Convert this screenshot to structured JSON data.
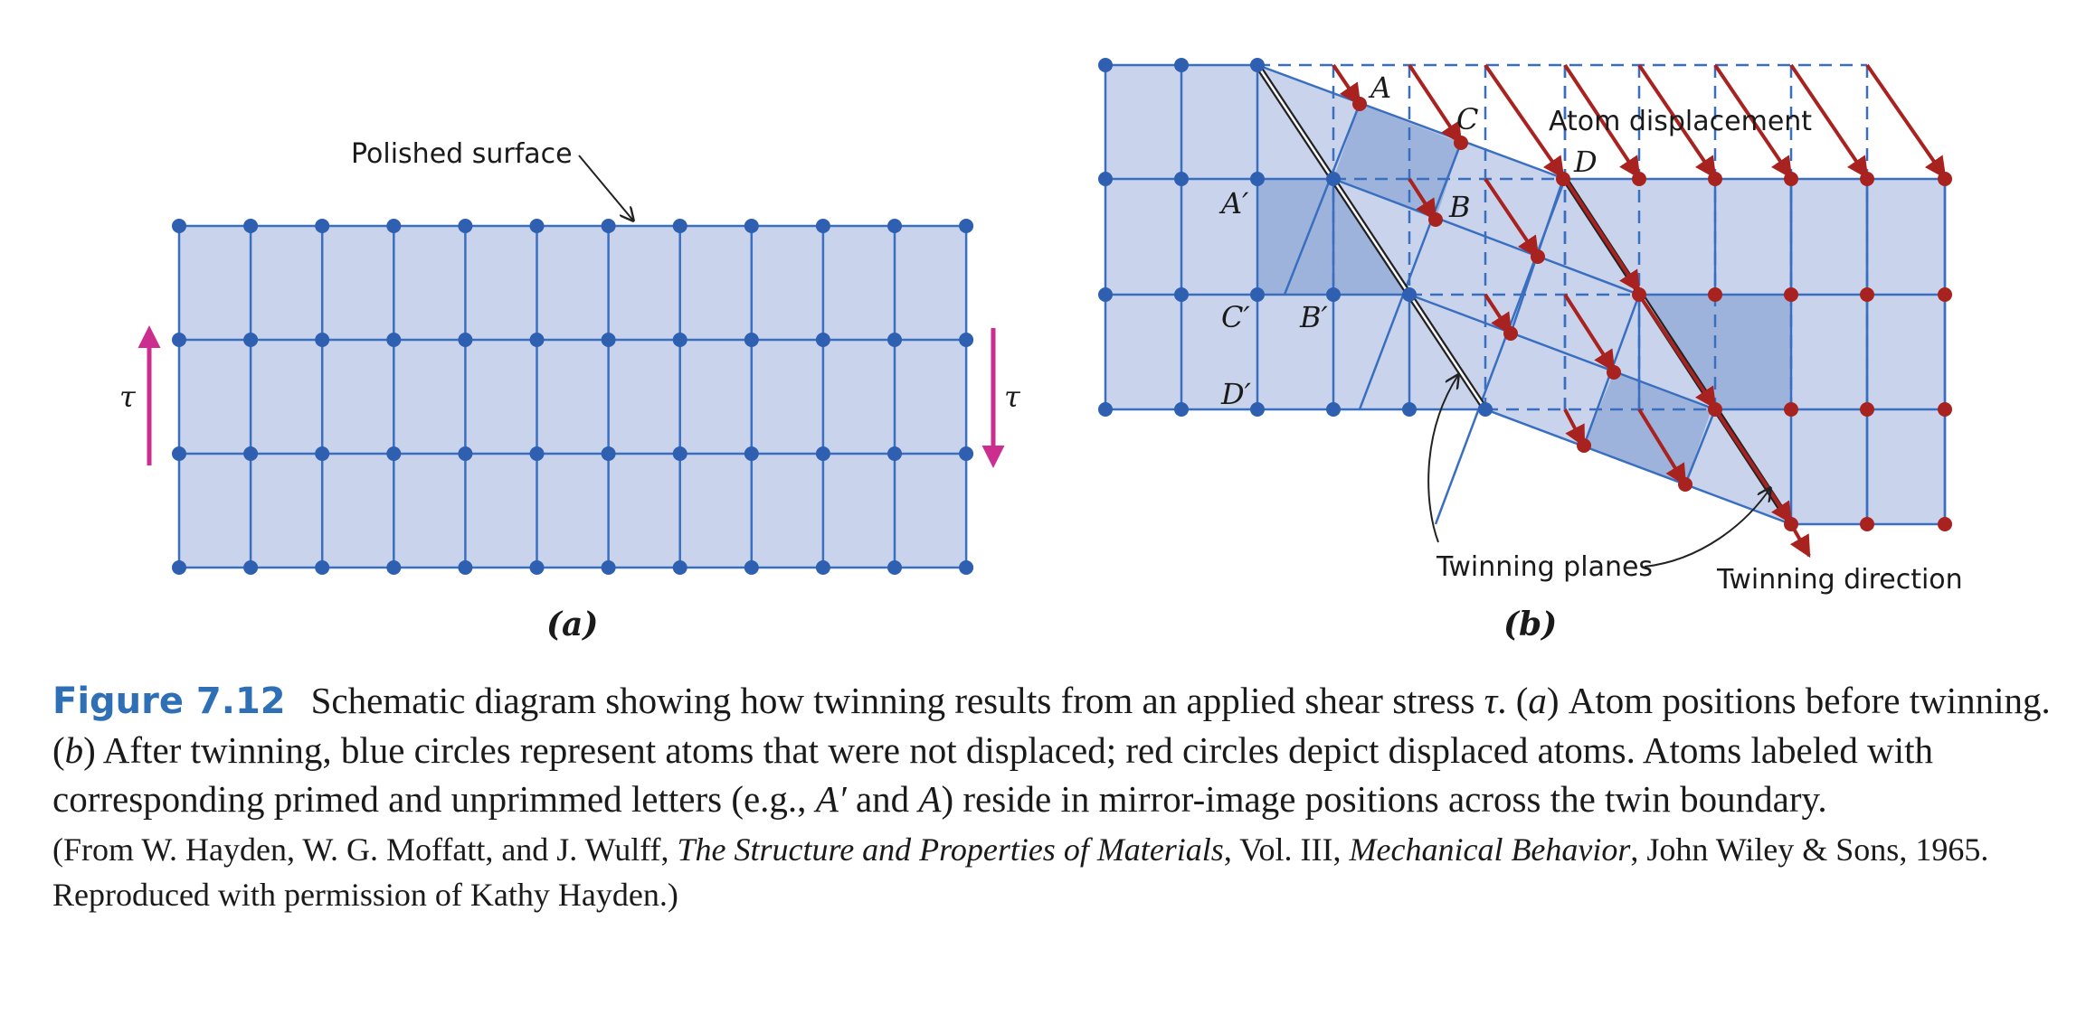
{
  "colors": {
    "fill": "#c9d4ec",
    "fill_dark": "#9db3dc",
    "line": "#3a6fc0",
    "atom_blue": "#2f5fb0",
    "atom_red": "#a8221f",
    "arrow_red": "#a8221f",
    "shear_arrow": "#cc2e8f",
    "caption_blue": "#2f6fb6"
  },
  "panel_a": {
    "surface_label": "Polished surface",
    "tau_left": "τ",
    "tau_right": "τ",
    "sublabel": "(a)"
  },
  "panel_b": {
    "atom_displacement_label": "Atom displacement",
    "twinning_planes_label": "Twinning planes",
    "twinning_direction_label": "Twinning direction",
    "sublabel": "(b)",
    "letters": {
      "A": "A",
      "B": "B",
      "C": "C",
      "D": "D",
      "A_prime": "A′",
      "B_prime": "B′",
      "C_prime": "C′",
      "D_prime": "D′"
    }
  },
  "caption": {
    "figure_label": "Figure 7.12",
    "p1": "Schematic diagram showing how twinning results from an applied shear stress ",
    "tau": "τ",
    "p2": ". (",
    "a": "a",
    "p3": ") Atom positions before twinning. (",
    "b": "b",
    "p4": ") After twinning, blue circles represent atoms that were not displaced; red circles depict displaced atoms. Atoms labeled with corresponding primed and unprimmed letters (e.g., ",
    "a_prime": "A′",
    "and": " and ",
    "a_letter": "A",
    "p5": ") reside in mirror-image positions across the twin boundary.",
    "src1": "(From W. Hayden, W. G. Moffatt, and J. Wulff, ",
    "src_title": "The Structure and Properties of Materials",
    "src2": ", Vol. III, ",
    "src_title2": "Mechanical Behavior",
    "src3": ", John Wiley & Sons, 1965. Reproduced with permission of Kathy Hayden.)"
  }
}
